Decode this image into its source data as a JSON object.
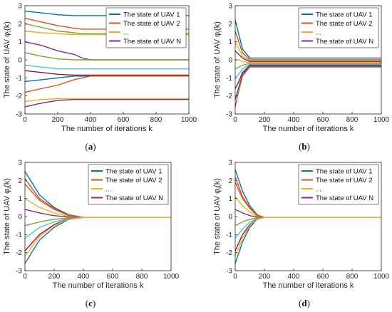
{
  "colors": [
    "#0072BD",
    "#D95319",
    "#EDB120",
    "#7E2F8E",
    "#77AC30",
    "#4DBEEE",
    "#A2142F"
  ],
  "chart_data": [
    {
      "type": "line",
      "panel": "a",
      "caption_letter": "a",
      "xlabel": "The number of iterations k",
      "ylabel_main": "The state of UAV ",
      "ylabel_phi": "φ",
      "ylabel_sub": "i",
      "ylabel_arg": "(k)",
      "xlim": [
        0,
        1000
      ],
      "ylim": [
        -3,
        3
      ],
      "xticks": [
        "0",
        "200",
        "400",
        "600",
        "800",
        "1000"
      ],
      "yticks": [
        "-3",
        "-2",
        "-1",
        "0",
        "1",
        "2",
        "3"
      ],
      "grid": false,
      "legend_position": "top-right",
      "legend": [
        "The state of UAV 1",
        "The state of UAV 2",
        "...",
        "The state of UAV N"
      ],
      "series": [
        {
          "x": [
            0,
            100,
            200,
            300,
            350,
            400,
            1000
          ],
          "values": [
            2.7,
            2.6,
            2.5,
            2.45,
            2.45,
            2.45,
            2.45
          ]
        },
        {
          "x": [
            0,
            100,
            200,
            300,
            350,
            400,
            1000
          ],
          "values": [
            2.3,
            2.1,
            1.9,
            1.75,
            1.7,
            1.7,
            1.7
          ]
        },
        {
          "x": [
            0,
            100,
            200,
            300,
            350,
            400,
            1000
          ],
          "values": [
            1.6,
            1.5,
            1.45,
            1.4,
            1.4,
            1.4,
            1.4
          ]
        },
        {
          "x": [
            0,
            100,
            200,
            300,
            350,
            400,
            1000
          ],
          "values": [
            1.0,
            0.8,
            0.5,
            0.3,
            0.1,
            0.0,
            0.0
          ]
        },
        {
          "x": [
            0,
            100,
            200,
            300,
            350,
            400,
            1000
          ],
          "values": [
            0.4,
            0.2,
            0.05,
            0.0,
            0.0,
            0.0,
            0.0
          ]
        },
        {
          "x": [
            0,
            100,
            200,
            300,
            350,
            400,
            1000
          ],
          "values": [
            -0.3,
            -0.4,
            -0.5,
            -0.5,
            -0.5,
            -0.5,
            -0.5
          ]
        },
        {
          "x": [
            0,
            100,
            200,
            300,
            350,
            400,
            1000
          ],
          "values": [
            -0.6,
            -0.7,
            -0.8,
            -0.85,
            -0.85,
            -0.85,
            -0.85
          ]
        },
        {
          "x": [
            0,
            100,
            200,
            300,
            350,
            400,
            1000
          ],
          "values": [
            -1.2,
            -1.1,
            -1.0,
            -0.9,
            -0.9,
            -0.9,
            -0.9
          ]
        },
        {
          "x": [
            0,
            100,
            200,
            300,
            350,
            400,
            1000
          ],
          "values": [
            -1.8,
            -1.6,
            -1.4,
            -1.1,
            -1.0,
            -0.9,
            -0.9
          ]
        },
        {
          "x": [
            0,
            100,
            200,
            300,
            350,
            400,
            1000
          ],
          "values": [
            -2.3,
            -2.2,
            -2.15,
            -2.15,
            -2.15,
            -2.15,
            -2.15
          ]
        },
        {
          "x": [
            0,
            100,
            200,
            300,
            350,
            400,
            1000
          ],
          "values": [
            -2.6,
            -2.4,
            -2.25,
            -2.2,
            -2.2,
            -2.2,
            -2.2
          ]
        },
        {
          "x": [
            0,
            100,
            200,
            300,
            350,
            400,
            1000
          ],
          "values": [
            2.0,
            1.8,
            1.6,
            1.5,
            1.45,
            1.45,
            1.45
          ]
        }
      ]
    },
    {
      "type": "line",
      "panel": "b",
      "caption_letter": "b",
      "xlabel": "The number of iterations k",
      "ylabel_main": "The state of UAV ",
      "ylabel_phi": "φ",
      "ylabel_sub": "i",
      "ylabel_arg": "(k)",
      "xlim": [
        0,
        1000
      ],
      "ylim": [
        -3,
        3
      ],
      "xticks": [
        "0",
        "200",
        "400",
        "600",
        "800",
        "1000"
      ],
      "yticks": [
        "-3",
        "-2",
        "-1",
        "0",
        "1",
        "2",
        "3"
      ],
      "grid": false,
      "legend_position": "top-right",
      "legend": [
        "The state of UAV 1",
        "The state of UAV 2",
        "...",
        "The state of UAV N"
      ],
      "series": [
        {
          "x": [
            0,
            25,
            50,
            100,
            1000
          ],
          "values": [
            2.2,
            1.4,
            0.6,
            0.1,
            0.1
          ]
        },
        {
          "x": [
            0,
            25,
            50,
            100,
            1000
          ],
          "values": [
            1.6,
            1.0,
            0.4,
            0.0,
            0.0
          ]
        },
        {
          "x": [
            0,
            25,
            50,
            100,
            1000
          ],
          "values": [
            1.0,
            0.6,
            0.2,
            -0.05,
            -0.05
          ]
        },
        {
          "x": [
            0,
            25,
            50,
            100,
            1000
          ],
          "values": [
            0.5,
            0.3,
            0.1,
            -0.1,
            -0.1
          ]
        },
        {
          "x": [
            0,
            25,
            50,
            100,
            1000
          ],
          "values": [
            -0.5,
            -0.4,
            -0.3,
            -0.2,
            -0.2
          ]
        },
        {
          "x": [
            0,
            25,
            50,
            100,
            1000
          ],
          "values": [
            -1.0,
            -0.8,
            -0.5,
            -0.25,
            -0.25
          ]
        },
        {
          "x": [
            0,
            25,
            50,
            100,
            1000
          ],
          "values": [
            -1.6,
            -1.2,
            -0.7,
            -0.3,
            -0.3
          ]
        },
        {
          "x": [
            0,
            25,
            50,
            100,
            1000
          ],
          "values": [
            -2.2,
            -1.5,
            -0.8,
            -0.35,
            -0.35
          ]
        },
        {
          "x": [
            0,
            25,
            50,
            100,
            1000
          ],
          "values": [
            -2.6,
            -1.7,
            -0.9,
            -0.4,
            -0.4
          ]
        },
        {
          "x": [
            0,
            25,
            50,
            100,
            1000
          ],
          "values": [
            0.0,
            0.0,
            -0.1,
            -0.15,
            -0.15
          ]
        }
      ]
    },
    {
      "type": "line",
      "panel": "c",
      "caption_letter": "c",
      "xlabel": "The number of iterations k",
      "ylabel_main": "The state of UAV ",
      "ylabel_phi": "φ",
      "ylabel_sub": "i",
      "ylabel_arg": "(k)",
      "xlim": [
        0,
        1000
      ],
      "ylim": [
        -3,
        3
      ],
      "xticks": [
        "0",
        "200",
        "400",
        "600",
        "800",
        "1000"
      ],
      "yticks": [
        "-3",
        "-2",
        "-1",
        "0",
        "1",
        "2",
        "3"
      ],
      "grid": false,
      "legend_position": "top-right",
      "legend": [
        "The state of UAV 1",
        "The state of UAV 2",
        "...",
        "The state of UAV N"
      ],
      "series": [
        {
          "x": [
            0,
            100,
            200,
            300,
            400,
            1000
          ],
          "values": [
            2.5,
            1.2,
            0.5,
            0.1,
            -0.05,
            -0.05
          ]
        },
        {
          "x": [
            0,
            100,
            200,
            300,
            400,
            1000
          ],
          "values": [
            1.8,
            0.9,
            0.4,
            0.05,
            -0.05,
            -0.05
          ]
        },
        {
          "x": [
            0,
            100,
            200,
            300,
            400,
            1000
          ],
          "values": [
            1.0,
            0.5,
            0.2,
            0.0,
            -0.05,
            -0.05
          ]
        },
        {
          "x": [
            0,
            100,
            200,
            300,
            400,
            1000
          ],
          "values": [
            0.4,
            0.2,
            0.05,
            -0.03,
            -0.05,
            -0.05
          ]
        },
        {
          "x": [
            0,
            100,
            200,
            300,
            400,
            1000
          ],
          "values": [
            -0.5,
            -0.3,
            -0.15,
            -0.07,
            -0.05,
            -0.05
          ]
        },
        {
          "x": [
            0,
            100,
            200,
            300,
            400,
            1000
          ],
          "values": [
            -1.2,
            -0.6,
            -0.3,
            -0.1,
            -0.05,
            -0.05
          ]
        },
        {
          "x": [
            0,
            100,
            200,
            300,
            400,
            1000
          ],
          "values": [
            -1.9,
            -1.0,
            -0.45,
            -0.12,
            -0.05,
            -0.05
          ]
        },
        {
          "x": [
            0,
            100,
            200,
            300,
            400,
            1000
          ],
          "values": [
            -2.6,
            -1.3,
            -0.6,
            -0.15,
            -0.05,
            -0.05
          ]
        },
        {
          "x": [
            0,
            100,
            200,
            300,
            400,
            1000
          ],
          "values": [
            2.1,
            1.0,
            0.45,
            0.08,
            -0.05,
            -0.05
          ]
        },
        {
          "x": [
            0,
            100,
            200,
            300,
            400,
            1000
          ],
          "values": [
            -2.2,
            -1.1,
            -0.5,
            -0.13,
            -0.05,
            -0.05
          ]
        }
      ]
    },
    {
      "type": "line",
      "panel": "d",
      "caption_letter": "d",
      "xlabel": "The number of iterations k",
      "ylabel_main": "The state of UAV ",
      "ylabel_phi": "φ",
      "ylabel_sub": "i",
      "ylabel_arg": "(k)",
      "xlim": [
        0,
        1000
      ],
      "ylim": [
        -3,
        3
      ],
      "xticks": [
        "0",
        "200",
        "400",
        "600",
        "800",
        "1000"
      ],
      "yticks": [
        "-3",
        "-2",
        "-1",
        "0",
        "1",
        "2",
        "3"
      ],
      "grid": false,
      "legend_position": "top-right",
      "legend": [
        "The state of UAV 1",
        "The state of UAV 2",
        "...",
        "The state of UAV N"
      ],
      "series": [
        {
          "x": [
            0,
            50,
            100,
            150,
            200,
            1000
          ],
          "values": [
            2.6,
            1.4,
            0.6,
            0.1,
            -0.05,
            -0.05
          ]
        },
        {
          "x": [
            0,
            50,
            100,
            150,
            200,
            1000
          ],
          "values": [
            1.9,
            1.0,
            0.45,
            0.05,
            -0.05,
            -0.05
          ]
        },
        {
          "x": [
            0,
            50,
            100,
            150,
            200,
            1000
          ],
          "values": [
            1.1,
            0.6,
            0.25,
            0.0,
            -0.05,
            -0.05
          ]
        },
        {
          "x": [
            0,
            50,
            100,
            150,
            200,
            1000
          ],
          "values": [
            0.4,
            0.2,
            0.05,
            -0.03,
            -0.05,
            -0.05
          ]
        },
        {
          "x": [
            0,
            50,
            100,
            150,
            200,
            1000
          ],
          "values": [
            -0.5,
            -0.3,
            -0.15,
            -0.07,
            -0.05,
            -0.05
          ]
        },
        {
          "x": [
            0,
            50,
            100,
            150,
            200,
            1000
          ],
          "values": [
            -1.2,
            -0.7,
            -0.3,
            -0.1,
            -0.05,
            -0.05
          ]
        },
        {
          "x": [
            0,
            50,
            100,
            150,
            200,
            1000
          ],
          "values": [
            -1.9,
            -1.0,
            -0.45,
            -0.12,
            -0.05,
            -0.05
          ]
        },
        {
          "x": [
            0,
            50,
            100,
            150,
            200,
            1000
          ],
          "values": [
            -2.6,
            -1.4,
            -0.6,
            -0.15,
            -0.05,
            -0.05
          ]
        },
        {
          "x": [
            0,
            50,
            100,
            150,
            200,
            1000
          ],
          "values": [
            2.2,
            1.1,
            0.5,
            0.08,
            -0.05,
            -0.05
          ]
        },
        {
          "x": [
            0,
            50,
            100,
            150,
            200,
            1000
          ],
          "values": [
            -2.2,
            -1.2,
            -0.5,
            -0.13,
            -0.05,
            -0.05
          ]
        }
      ]
    }
  ]
}
